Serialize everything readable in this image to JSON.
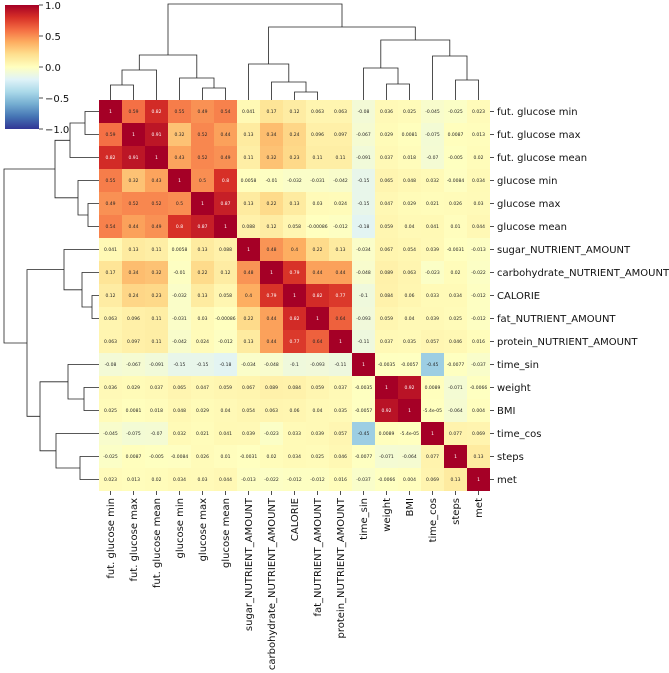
{
  "chart_data": {
    "type": "heatmap",
    "title": "",
    "colormap": "RdYlBu_r",
    "colorbar": {
      "min": -1.0,
      "max": 1.0,
      "ticks": [
        "1.0",
        "0.5",
        "0.0",
        "−0.5",
        "−1.0"
      ]
    },
    "row_labels": [
      "fut. glucose min",
      "fut. glucose max",
      "fut. glucose mean",
      "glucose min",
      "glucose max",
      "glucose mean",
      "sugar_NUTRIENT_AMOUNT",
      "carbohydrate_NUTRIENT_AMOUNT",
      "CALORIE",
      "fat_NUTRIENT_AMOUNT",
      "protein_NUTRIENT_AMOUNT",
      "time_sin",
      "weight",
      "BMI",
      "time_cos",
      "steps",
      "met"
    ],
    "col_labels": [
      "fut. glucose min",
      "fut. glucose max",
      "fut. glucose mean",
      "glucose min",
      "glucose max",
      "glucose mean",
      "sugar_NUTRIENT_AMOUNT",
      "carbohydrate_NUTRIENT_AMOUNT",
      "CALORIE",
      "fat_NUTRIENT_AMOUNT",
      "protein_NUTRIENT_AMOUNT",
      "time_sin",
      "weight",
      "BMI",
      "time_cos",
      "steps",
      "met"
    ],
    "values": [
      [
        "1",
        "0.59",
        "0.82",
        "0.55",
        "0.49",
        "0.54",
        "0.041",
        "0.17",
        "0.12",
        "0.063",
        "0.063",
        "-0.08",
        "0.036",
        "0.025",
        "-0.045",
        "-0.025",
        "0.023"
      ],
      [
        "0.59",
        "1",
        "0.91",
        "0.32",
        "0.52",
        "0.44",
        "0.13",
        "0.34",
        "0.24",
        "0.096",
        "0.097",
        "-0.067",
        "0.029",
        "0.0081",
        "-0.075",
        "0.0087",
        "0.013"
      ],
      [
        "0.82",
        "0.91",
        "1",
        "0.43",
        "0.52",
        "0.49",
        "0.11",
        "0.32",
        "0.23",
        "0.11",
        "0.11",
        "-0.091",
        "0.037",
        "0.018",
        "-0.07",
        "-0.005",
        "0.02"
      ],
      [
        "0.55",
        "0.32",
        "0.43",
        "1",
        "0.5",
        "0.8",
        "0.0058",
        "-0.01",
        "-0.032",
        "-0.031",
        "-0.042",
        "-0.15",
        "0.065",
        "0.048",
        "0.032",
        "-0.0084",
        "0.034"
      ],
      [
        "0.49",
        "0.52",
        "0.52",
        "0.5",
        "1",
        "0.87",
        "0.13",
        "0.22",
        "0.13",
        "0.03",
        "0.024",
        "-0.15",
        "0.047",
        "0.029",
        "0.021",
        "0.026",
        "0.03"
      ],
      [
        "0.54",
        "0.44",
        "0.49",
        "0.8",
        "0.87",
        "1",
        "0.088",
        "0.12",
        "0.058",
        "-0.00086",
        "-0.012",
        "-0.18",
        "0.059",
        "0.04",
        "0.041",
        "0.01",
        "0.044"
      ],
      [
        "0.041",
        "0.13",
        "0.11",
        "0.0058",
        "0.13",
        "0.088",
        "1",
        "0.48",
        "0.4",
        "0.22",
        "0.13",
        "-0.034",
        "0.067",
        "0.054",
        "0.039",
        "-0.0031",
        "-0.013"
      ],
      [
        "0.17",
        "0.34",
        "0.32",
        "-0.01",
        "0.22",
        "0.12",
        "0.48",
        "1",
        "0.79",
        "0.44",
        "0.44",
        "-0.048",
        "0.089",
        "0.063",
        "-0.023",
        "0.02",
        "-0.022"
      ],
      [
        "0.12",
        "0.24",
        "0.23",
        "-0.032",
        "0.13",
        "0.058",
        "0.4",
        "0.79",
        "1",
        "0.82",
        "0.77",
        "-0.1",
        "0.084",
        "0.06",
        "0.033",
        "0.034",
        "-0.012"
      ],
      [
        "0.063",
        "0.096",
        "0.11",
        "-0.031",
        "0.03",
        "-0.00086",
        "0.22",
        "0.44",
        "0.82",
        "1",
        "0.64",
        "-0.093",
        "0.059",
        "0.04",
        "0.039",
        "0.025",
        "-0.012"
      ],
      [
        "0.063",
        "0.097",
        "0.11",
        "-0.042",
        "0.024",
        "-0.012",
        "0.13",
        "0.44",
        "0.77",
        "0.64",
        "1",
        "-0.11",
        "0.037",
        "0.035",
        "0.057",
        "0.046",
        "0.016"
      ],
      [
        "-0.08",
        "-0.067",
        "-0.091",
        "-0.15",
        "-0.15",
        "-0.18",
        "-0.034",
        "-0.048",
        "-0.1",
        "-0.093",
        "-0.11",
        "1",
        "-0.0035",
        "-0.0057",
        "-0.45",
        "-0.0077",
        "-0.037"
      ],
      [
        "0.036",
        "0.029",
        "0.037",
        "0.065",
        "0.047",
        "0.059",
        "0.067",
        "0.089",
        "0.084",
        "0.059",
        "0.037",
        "-0.0035",
        "1",
        "0.92",
        "0.0089",
        "-0.071",
        "-0.0066"
      ],
      [
        "0.025",
        "0.0081",
        "0.018",
        "0.048",
        "0.029",
        "0.04",
        "0.054",
        "0.063",
        "0.06",
        "0.04",
        "0.035",
        "-0.0057",
        "0.92",
        "1",
        "-5.4e-05",
        "-0.064",
        "0.004"
      ],
      [
        "-0.045",
        "-0.075",
        "-0.07",
        "0.032",
        "0.021",
        "0.041",
        "0.039",
        "-0.023",
        "0.033",
        "0.039",
        "0.057",
        "-0.45",
        "0.0089",
        "-5.4e-05",
        "1",
        "0.077",
        "0.069"
      ],
      [
        "-0.025",
        "0.0087",
        "-0.005",
        "-0.0084",
        "0.026",
        "0.01",
        "-0.0031",
        "0.02",
        "0.034",
        "0.025",
        "0.046",
        "-0.0077",
        "-0.071",
        "-0.064",
        "0.077",
        "1",
        "0.13"
      ],
      [
        "0.023",
        "0.013",
        "0.02",
        "0.034",
        "0.03",
        "0.044",
        "-0.013",
        "-0.022",
        "-0.012",
        "-0.012",
        "0.016",
        "-0.037",
        "-0.0066",
        "0.004",
        "0.069",
        "0.13",
        "1"
      ]
    ]
  }
}
